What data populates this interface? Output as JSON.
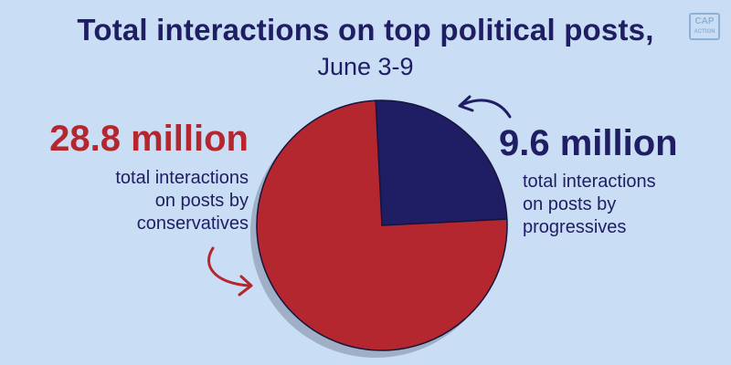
{
  "header": {
    "title": "Total interactions on top political posts,",
    "subtitle": "June 3-9"
  },
  "logo": {
    "top": "CAP",
    "bottom": "ACTION"
  },
  "labels": {
    "conservatives_value": "28.8 million",
    "conservatives_desc": [
      "total interactions",
      "on posts by",
      "conservatives"
    ],
    "progressives_value": "9.6 million",
    "progressives_desc": [
      "total interactions",
      "on posts by",
      "progressives"
    ]
  },
  "colors": {
    "background": "#c9ddf5",
    "conservatives": "#b5272e",
    "progressives": "#1f1d63",
    "shadow": "#9fb0c6"
  },
  "chart_data": {
    "type": "pie",
    "title": "Total interactions on top political posts,",
    "subtitle": "June 3-9",
    "unit": "million",
    "slices": [
      {
        "label": "conservatives",
        "value": 28.8,
        "color": "#b5272e"
      },
      {
        "label": "progressives",
        "value": 9.6,
        "color": "#1f1d63"
      }
    ]
  }
}
